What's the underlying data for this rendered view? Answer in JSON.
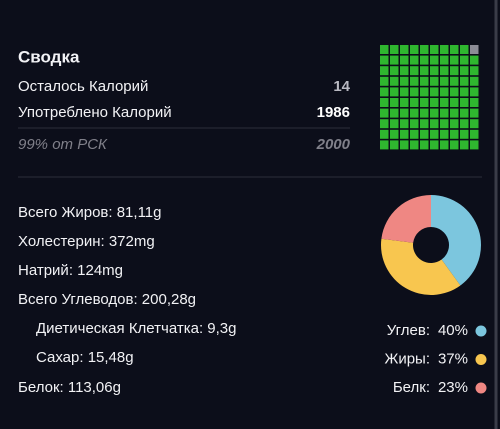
{
  "summary": {
    "title": "Сводка",
    "rows": [
      {
        "label": "Осталось Калорий",
        "value": 14
      },
      {
        "label": "Употреблено Калорий",
        "value": 1986
      }
    ],
    "goal_label": "99% от РСК",
    "goal_value": 2000
  },
  "nutrients": [
    "Всего Жиров: 81,11g",
    "Холестерин: 372mg",
    "Натрий: 124mg",
    "Всего Углеводов: 200,28g",
    "Диетическая Клетчатка: 9,3g",
    "Сахар: 15,48g",
    "Белок: 113,06g"
  ],
  "chart_data": [
    {
      "type": "waffle",
      "values": [
        99,
        1
      ],
      "colors": [
        "#2fb72f",
        "#8c8c96"
      ]
    },
    {
      "type": "pie",
      "categories": [
        "Углев:",
        "Жиры:",
        "Белк:"
      ],
      "values": [
        40,
        37,
        23
      ],
      "value_labels": [
        "40%",
        "37%",
        "23%"
      ],
      "colors": [
        "#7cc6de",
        "#f8c64f",
        "#ef8783"
      ]
    }
  ]
}
